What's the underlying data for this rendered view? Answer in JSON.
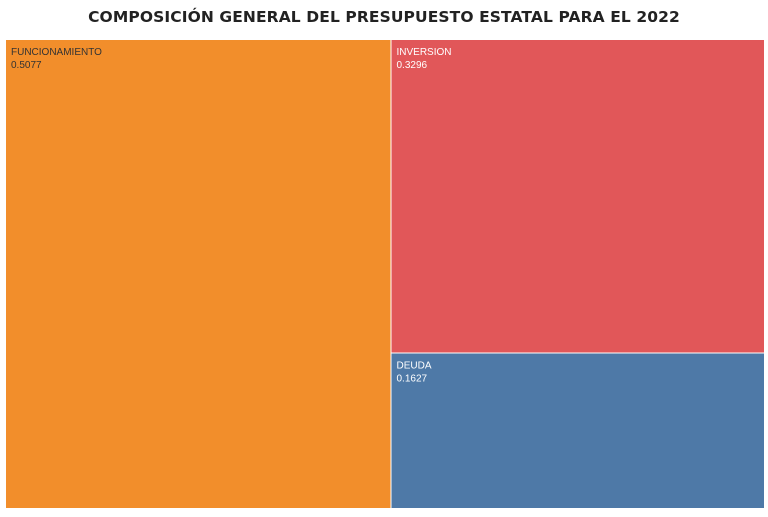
{
  "chart_data": {
    "type": "treemap",
    "title": "COMPOSICIÓN GENERAL DEL PRESUPUESTO ESTATAL PARA EL 2022",
    "items": [
      {
        "label": "FUNCIONAMIENTO",
        "value": 0.5077,
        "value_text": "0.5077",
        "color": "#F28E2B",
        "text_color": "#333333"
      },
      {
        "label": "INVERSION",
        "value": 0.3296,
        "value_text": "0.3296",
        "color": "#E15759",
        "text_color": "#ffffff"
      },
      {
        "label": "DEUDA",
        "value": 0.1627,
        "value_text": "0.1627",
        "color": "#4E79A7",
        "text_color": "#ffffff"
      }
    ]
  }
}
